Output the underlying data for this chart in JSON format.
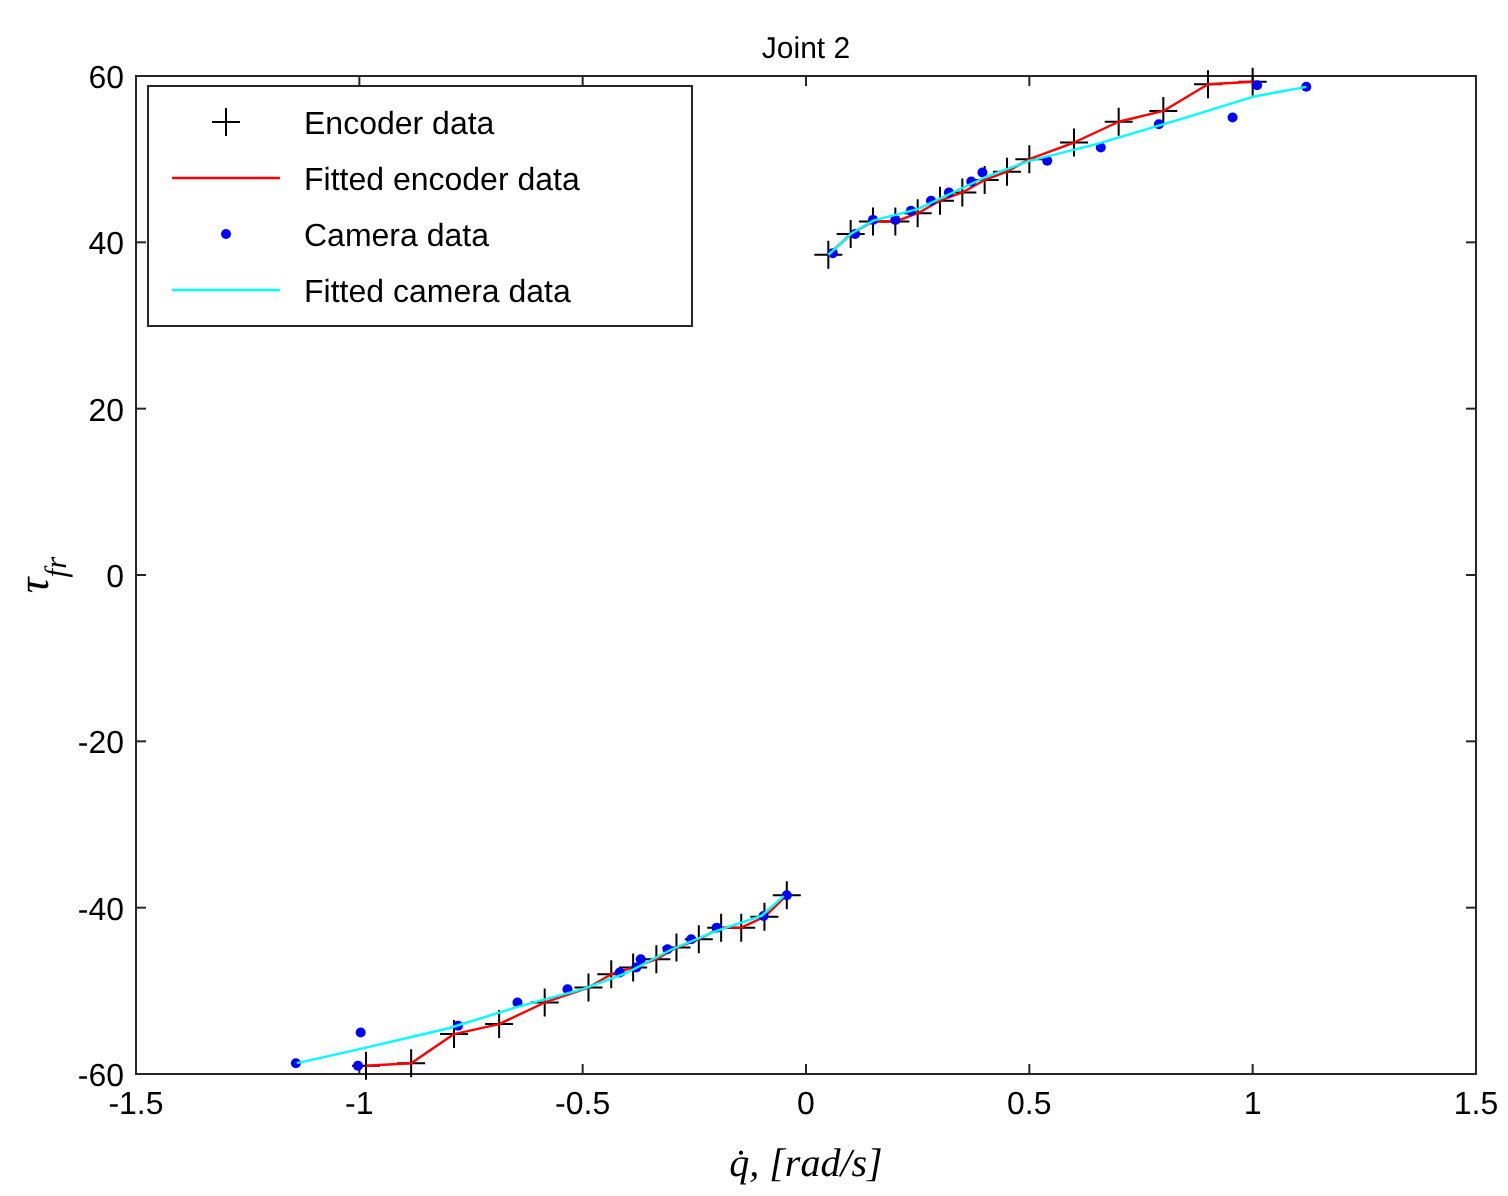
{
  "chart_data": {
    "type": "scatter",
    "title": "Joint 2",
    "xlabel": "q̇, [rad/s]",
    "ylabel": "τ$_{fr}$",
    "xlim": [
      -1.5,
      1.5
    ],
    "xticks": [
      -1.5,
      -1,
      -0.5,
      0,
      0.5,
      1,
      1.5
    ],
    "ylim": [
      -60,
      60
    ],
    "yticks": [
      -60,
      -40,
      -20,
      0,
      20,
      40,
      60
    ],
    "grid": false,
    "legend": "top left",
    "series": [
      {
        "name": "Encoder data",
        "marker": "cross",
        "color": "#000000",
        "x": [
          -0.985,
          -0.884,
          -0.788,
          -0.687,
          -0.585,
          -0.487,
          -0.436,
          -0.387,
          -0.335,
          -0.29,
          -0.24,
          -0.19,
          -0.145,
          -0.093,
          -0.043,
          0.05,
          0.1,
          0.15,
          0.2,
          0.25,
          0.3,
          0.35,
          0.4,
          0.45,
          0.5,
          0.6,
          0.7,
          0.8,
          0.9,
          1.0
        ],
        "values": [
          -59,
          -58.7,
          -55.2,
          -54,
          -51.4,
          -49.6,
          -48,
          -47.2,
          -46.2,
          -44.8,
          -43.8,
          -42.4,
          -42.4,
          -41.1,
          -38.5,
          38.5,
          41,
          42.5,
          42.5,
          43.5,
          45,
          46,
          47.5,
          48.5,
          50,
          52,
          54.5,
          55.8,
          59,
          59.3
        ]
      },
      {
        "name": "Fitted encoder data",
        "type": "line",
        "marker": "none",
        "color": "#ff0000",
        "x": [
          -0.985,
          -0.884,
          -0.788,
          -0.687,
          -0.585,
          -0.487,
          -0.436,
          -0.387,
          -0.335,
          -0.29,
          -0.24,
          -0.19,
          -0.145,
          -0.093,
          -0.043,
          0,
          0.05,
          0.1,
          0.15,
          0.2,
          0.25,
          0.3,
          0.35,
          0.4,
          0.45,
          0.5,
          0.6,
          0.7,
          0.8,
          0.9,
          1.0
        ],
        "values": [
          -59,
          -58.7,
          -55.2,
          -54,
          -51.4,
          -49.6,
          -48,
          -47.2,
          -46.2,
          -44.8,
          -43.8,
          -42.4,
          -42.4,
          -41.1,
          -38.5,
          null,
          38.5,
          41,
          42.5,
          42.5,
          43.5,
          45,
          46,
          47.5,
          48.5,
          50,
          52,
          54.5,
          55.8,
          59,
          59.3
        ]
      },
      {
        "name": "Camera data",
        "marker": "circle",
        "color": "#0000ff",
        "x": [
          -1.142,
          -1.003,
          -0.997,
          -0.779,
          -0.646,
          -0.534,
          -0.417,
          -0.38,
          -0.37,
          -0.31,
          -0.257,
          -0.2,
          -0.095,
          -0.043,
          0.06,
          0.11,
          0.15,
          0.2,
          0.235,
          0.28,
          0.32,
          0.37,
          0.395,
          0.54,
          0.66,
          0.79,
          0.955,
          1.01,
          1.12
        ],
        "values": [
          -58.7,
          -59,
          -55,
          -54.2,
          -51.4,
          -49.8,
          -47.8,
          -47.2,
          -46.2,
          -45,
          -43.8,
          -42.4,
          -41,
          -38.5,
          38.7,
          41,
          42.7,
          42.7,
          43.8,
          45,
          46,
          47.3,
          48.4,
          49.8,
          51.4,
          54.2,
          55,
          58.9,
          58.7
        ]
      },
      {
        "name": "Fitted camera data",
        "type": "line",
        "marker": "none",
        "color": "#00ffff",
        "x": [
          -1.14,
          -1.0,
          -0.8,
          -0.65,
          -0.5,
          -0.4,
          -0.3,
          -0.2,
          -0.1,
          -0.05,
          0,
          0.05,
          0.1,
          0.15,
          0.25,
          0.4,
          0.5,
          0.65,
          0.75,
          0.85,
          1.0,
          1.12
        ],
        "values": [
          -58.7,
          -57,
          -54.5,
          -52,
          -49.8,
          -47.8,
          -45,
          -42.8,
          -41,
          -38.6,
          null,
          38.5,
          41,
          42.6,
          44,
          47.8,
          49.8,
          51.8,
          53.4,
          55,
          57.5,
          58.7
        ]
      }
    ]
  }
}
